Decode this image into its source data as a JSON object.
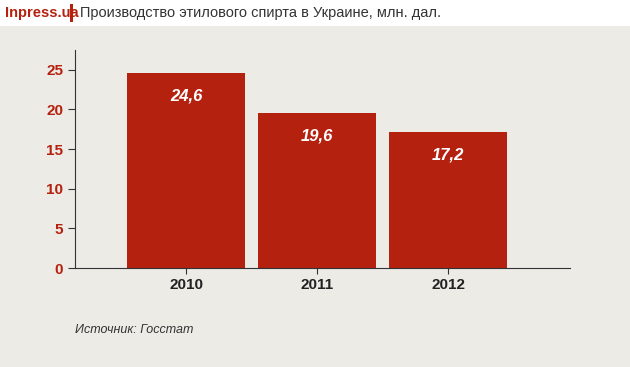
{
  "chart_data": {
    "type": "bar",
    "title": "Производство этилового спирта в Украине, млн. дал.",
    "annotations": [
      "Inpress.ua",
      "Источник: Госстат"
    ],
    "categories": [
      "2010",
      "2011",
      "2012"
    ],
    "values": [
      24.6,
      19.6,
      17.2
    ],
    "value_labels": [
      "24,6",
      "19,6",
      "17,2"
    ],
    "data_labels": true,
    "color": "#b5210f",
    "ylim": [
      0,
      27.5
    ],
    "yticks": [
      0,
      5,
      10,
      15,
      20,
      25
    ],
    "grid": false
  }
}
